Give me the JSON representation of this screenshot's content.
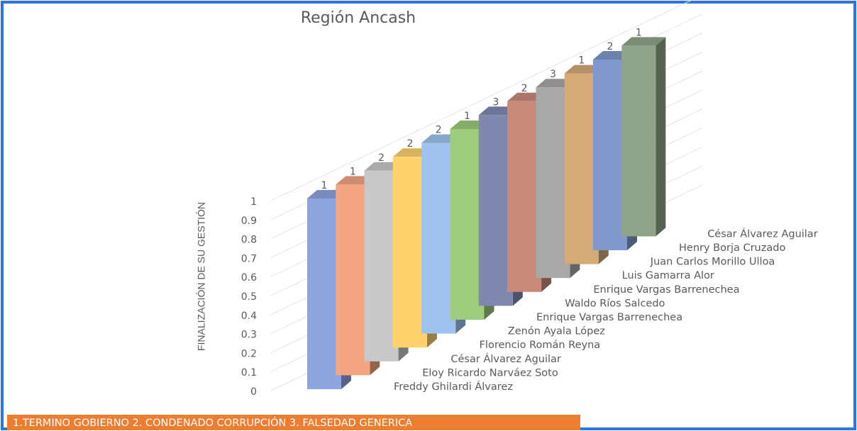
{
  "chart_data": {
    "type": "bar3d",
    "title": "Región   Ancash",
    "y_label": "FINALIZACIÓN DE SU GESTIÓN",
    "categories": [
      "Freddy Ghilardi Álvarez",
      "Eloy Ricardo Narváez Soto",
      "César Álvarez Aguilar",
      "Florencio Román Reyna",
      "Zenón Ayala López",
      "Enrique Vargas Barrenechea",
      "Waldo Ríos Salcedo",
      "Enrique Vargas Barrenechea",
      "Luis Gamarra Alor",
      "Juan Carlos Morillo Ulloa",
      "Henry Borja Cruzado",
      "César Álvarez Aguilar"
    ],
    "values": [
      1,
      1,
      1,
      1,
      1,
      1,
      1,
      1,
      1,
      1,
      1,
      1
    ],
    "data_labels": [
      "1",
      "1",
      "2",
      "2",
      "2",
      "1",
      "3",
      "2",
      "3",
      "1",
      "2",
      "1"
    ],
    "colors": [
      "#8fa5e0",
      "#f4a582",
      "#c8c8c8",
      "#ffd36b",
      "#9fc3ee",
      "#9ccc7c",
      "#8088b0",
      "#c98a7c",
      "#a8a8a8",
      "#d4aa78",
      "#8098cc",
      "#8fa58a"
    ],
    "ylim": [
      0,
      1
    ],
    "yticks": [
      0,
      0.1,
      0.2,
      0.3,
      0.4,
      0.5,
      0.6,
      0.7,
      0.8,
      0.9,
      1
    ],
    "grid": true,
    "legend_note": "1.TERMINO GOBIERNO  2. CONDENADO CORRUPCIÓN   3. FALSEDAD GENERICA"
  }
}
